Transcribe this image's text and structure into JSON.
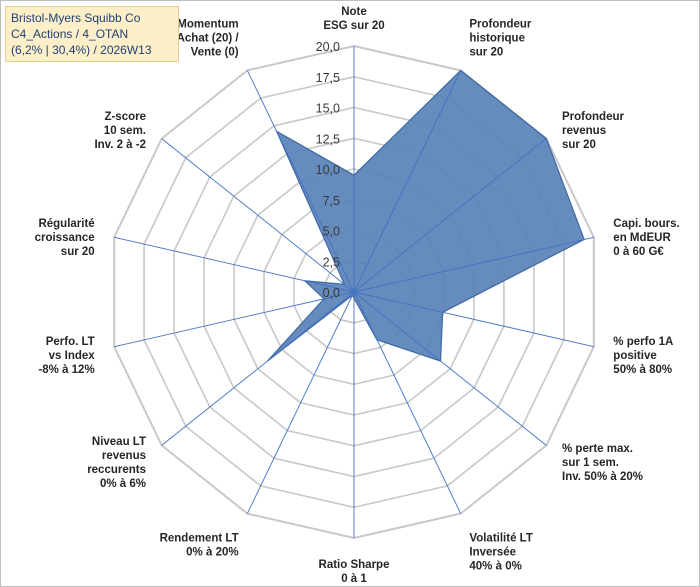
{
  "chart_data": {
    "type": "radar",
    "title_lines": [
      "Bristol-Myers Squibb Co",
      "C4_Actions / 4_OTAN",
      "(6,2% | 30,4%) / 2026W13"
    ],
    "rlim": [
      0,
      20
    ],
    "tick_values": [
      0,
      2.5,
      5,
      7.5,
      10,
      12.5,
      15,
      17.5,
      20
    ],
    "tick_labels": [
      "0,0",
      "2,5",
      "5,0",
      "7,5",
      "10,0",
      "12,5",
      "15,0",
      "17,5",
      "20,0"
    ],
    "axes": [
      {
        "label": [
          "Note",
          "ESG sur 20"
        ],
        "value": 9.5
      },
      {
        "label": [
          "Profondeur",
          "historique",
          "sur 20"
        ],
        "value": 20
      },
      {
        "label": [
          "Profondeur",
          "revenus",
          "sur 20"
        ],
        "value": 20
      },
      {
        "label": [
          "Capi. bours.",
          "en MdEUR",
          "0 à 60 G€"
        ],
        "value": 19.2
      },
      {
        "label": [
          "% perfo 1A",
          "positive",
          "50% à 80%"
        ],
        "value": 7.4
      },
      {
        "label": [
          "% perte max.",
          "sur 1 sem.",
          "Inv. 50% à 20%"
        ],
        "value": 9.0
      },
      {
        "label": [
          "Volatilité LT",
          "Inversée",
          "40% à 0%"
        ],
        "value": 4.3
      },
      {
        "label": [
          "Ratio Sharpe",
          "0 à 1"
        ],
        "value": 0.5
      },
      {
        "label": [
          "Rendement LT",
          "0% à 20%"
        ],
        "value": 0.3
      },
      {
        "label": [
          "Niveau LT",
          "revenus",
          "reccurents",
          "0% à 6%"
        ],
        "value": 9.0
      },
      {
        "label": [
          "Perfo. LT",
          "vs Index",
          "-8% à 12%"
        ],
        "value": 2.5
      },
      {
        "label": [
          "Régularité",
          "croissance",
          "sur 20"
        ],
        "value": 4.1
      },
      {
        "label": [
          "Z-score",
          "10 sem.",
          "Inv. 2 à -2"
        ],
        "value": 1.0
      },
      {
        "label": [
          "Momentum",
          "Achat (20) /",
          "Vente (0)"
        ],
        "value": 14.5
      }
    ],
    "grid": true,
    "series": [
      {
        "name": "Bristol-Myers Squibb Co",
        "color": "#5a82b8"
      }
    ]
  },
  "colors": {
    "fill": "#5a82b8",
    "stroke": "#3d6aa3",
    "grid": "#c8c8c8",
    "spoke": "#4472c4",
    "title_bg": "#fdf0c8",
    "title_text": "#1f3f73"
  }
}
